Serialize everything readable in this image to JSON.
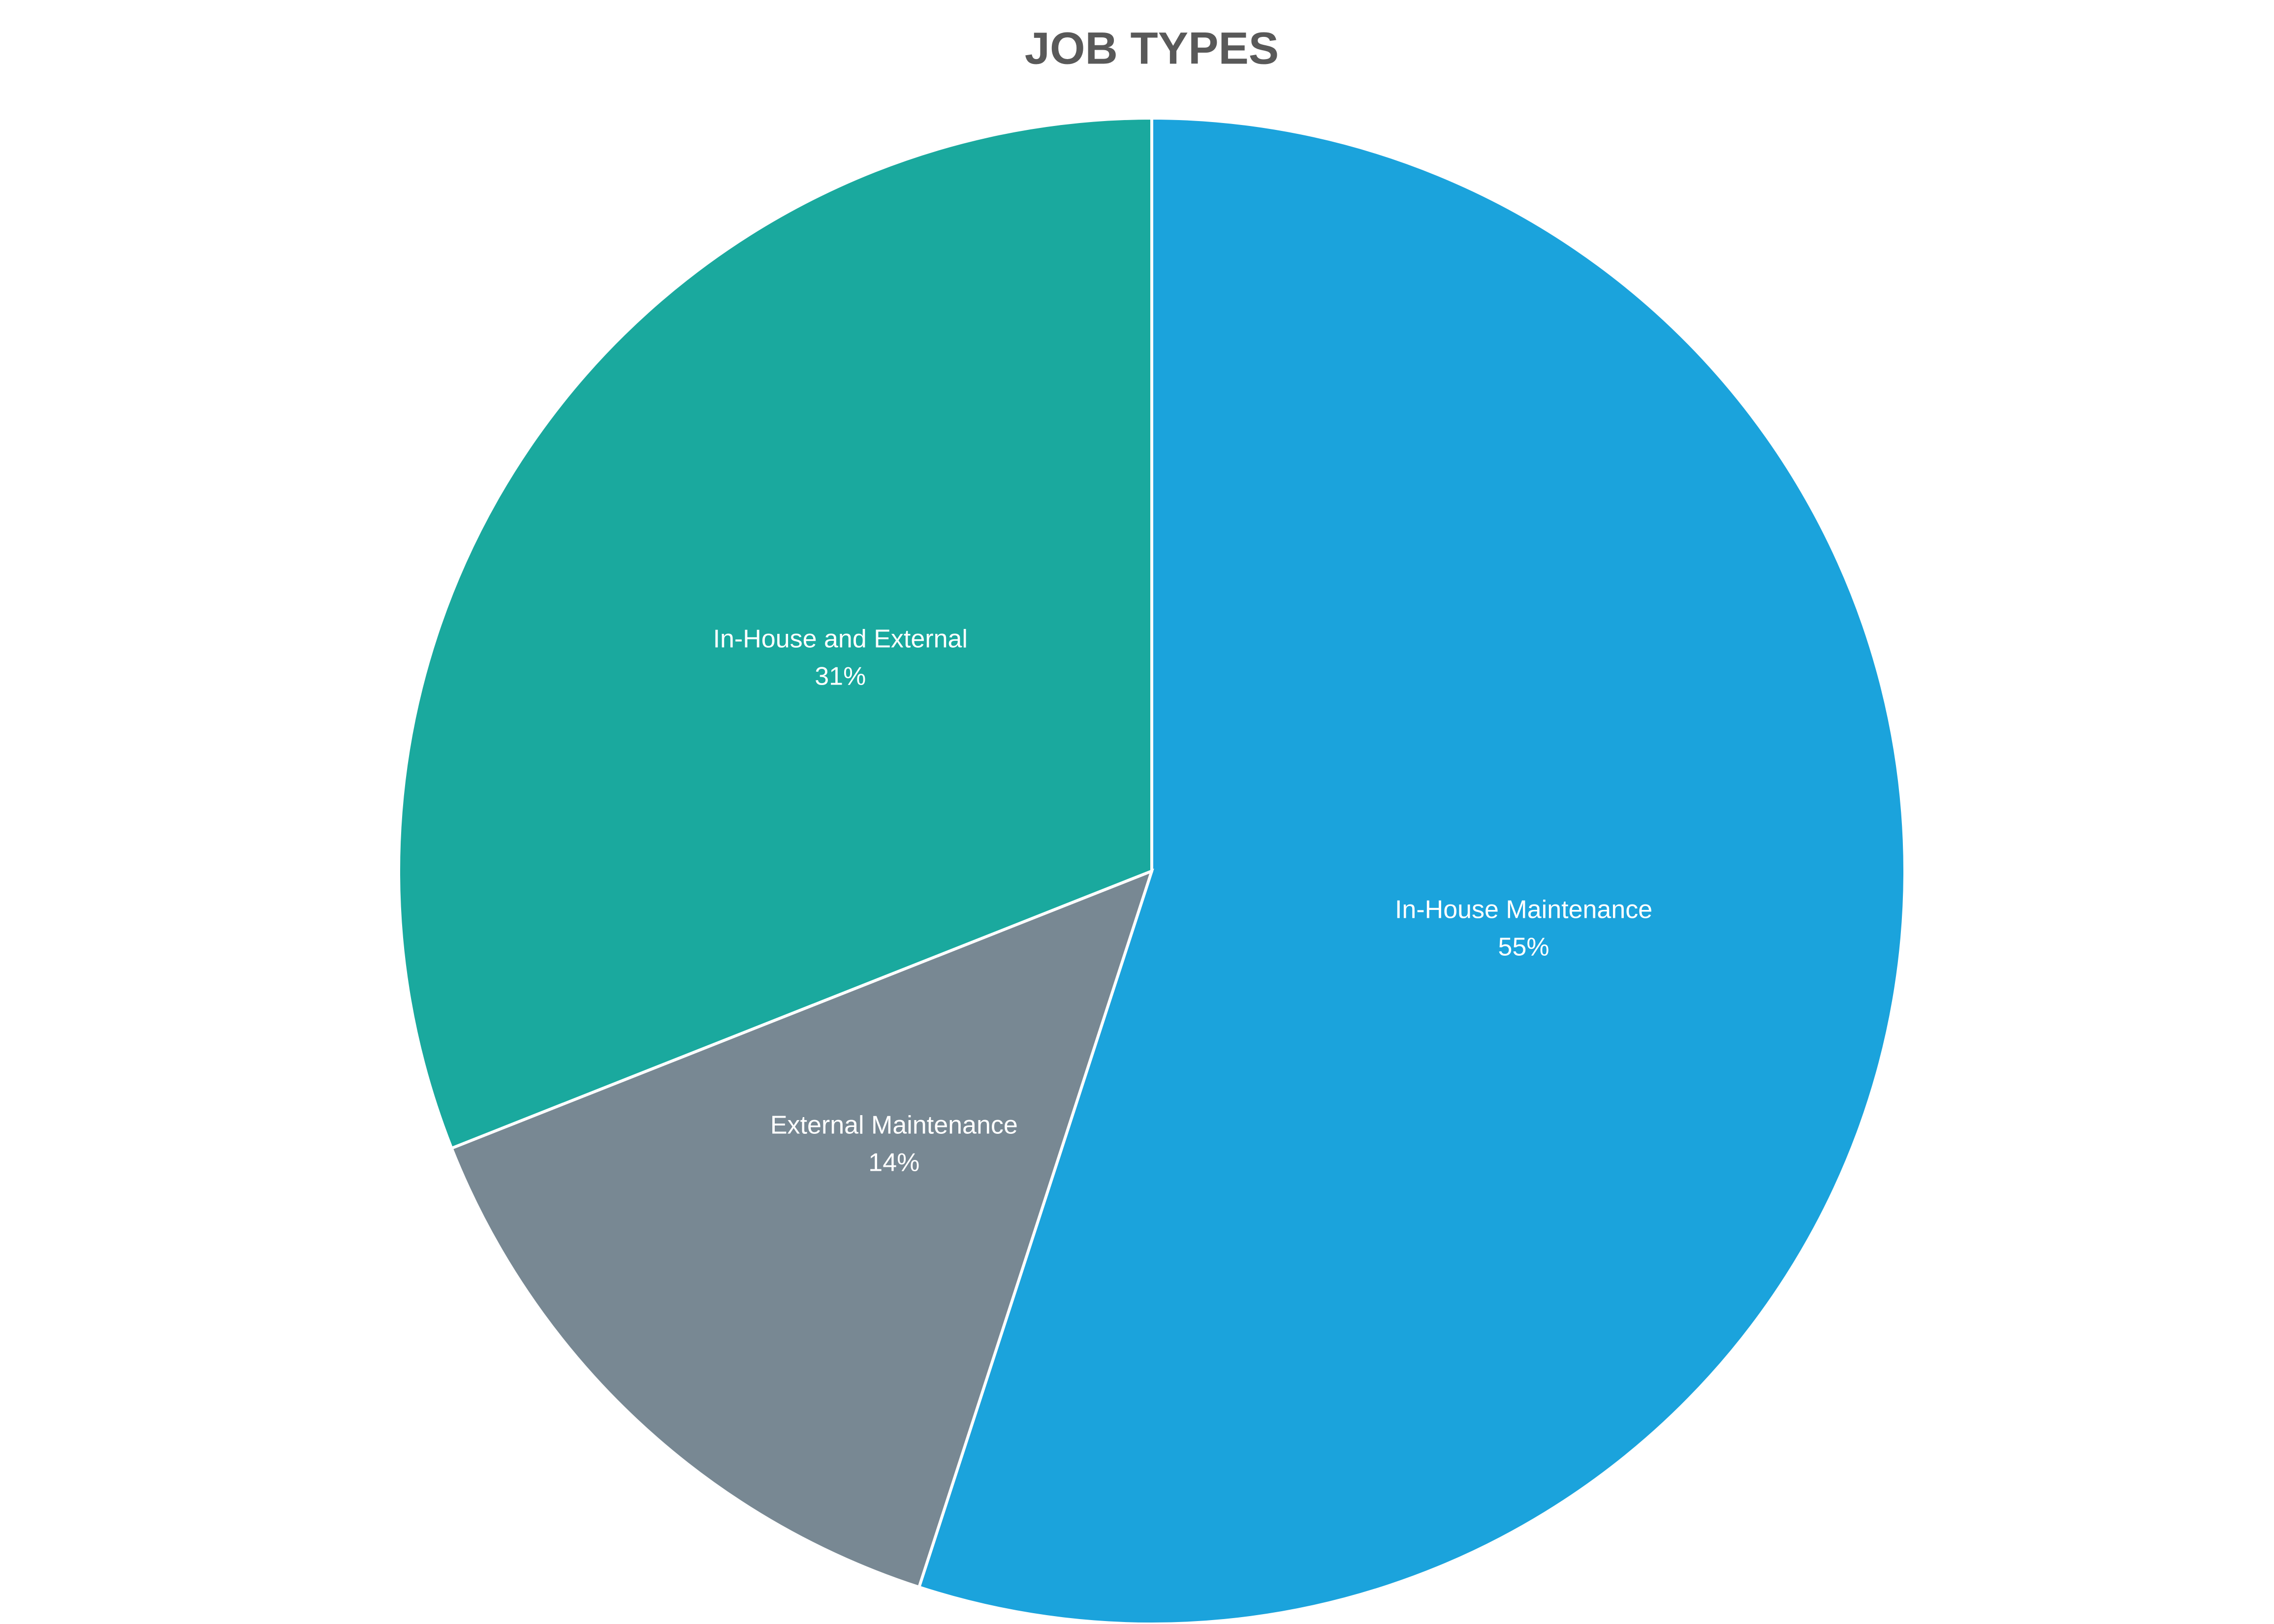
{
  "chart_data": {
    "type": "pie",
    "title": "JOB TYPES",
    "categories": [
      "In-House Maintenance",
      "External Maintenance",
      "In-House and External"
    ],
    "values": [
      55,
      14,
      31
    ],
    "value_labels": [
      "55%",
      "14%",
      "31%"
    ],
    "colors": [
      "#1ba3dc",
      "#788893",
      "#1aa99e"
    ]
  }
}
